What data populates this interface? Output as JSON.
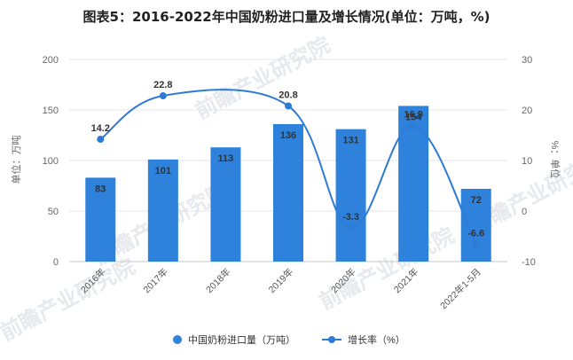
{
  "chart_data": {
    "type": "bar",
    "title": "图表5：2016-2022年中国奶粉进口量及增长情况(单位：万吨，%)",
    "categories": [
      "2016年",
      "2017年",
      "2018年",
      "2019年",
      "2020年",
      "2021年",
      "2022年1-5月"
    ],
    "ylabel_left": "单位：万吨",
    "ylabel_right": "%：单位",
    "ylim_left": [
      0,
      200
    ],
    "yticks_left": [
      "0",
      "50",
      "100",
      "150",
      "200"
    ],
    "ylim_right": [
      -10,
      30
    ],
    "yticks_right": [
      "-10",
      "0",
      "10",
      "20",
      "30"
    ],
    "legend_position": "bottom",
    "grid": true,
    "series": [
      {
        "name": "中国奶粉进口量（万吨）",
        "type": "bar",
        "axis": "left",
        "color": "#2e82dc",
        "values": [
          83,
          101,
          113,
          136,
          131,
          154,
          72
        ],
        "labels": [
          "83",
          "101",
          "113",
          "136",
          "131",
          "154",
          "72"
        ]
      },
      {
        "name": "增长率（%）",
        "type": "line",
        "axis": "right",
        "color": "#2e7bd6",
        "values": [
          14.2,
          22.8,
          null,
          20.8,
          -3.3,
          16.9,
          -6.6
        ],
        "labels": [
          "14.2",
          "22.8",
          "",
          "20.8",
          "-3.3",
          "16.9",
          "-6.6"
        ]
      }
    ],
    "watermark": "前瞻产业研究院"
  }
}
